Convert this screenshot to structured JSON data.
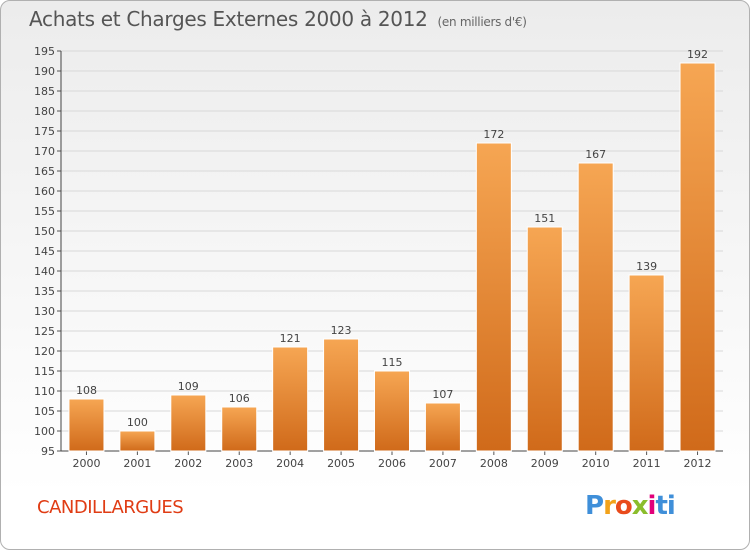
{
  "title": "Achats et Charges Externes 2000 à 2012",
  "unit": "(en milliers d'€)",
  "commune": "CANDILLARGUES",
  "logo": {
    "text": "Proxiti",
    "letters": [
      "P",
      "r",
      "o",
      "x",
      "i",
      "t",
      "i"
    ]
  },
  "colors": {
    "bar_top": "#f6a653",
    "bar_bottom": "#d06a1a",
    "grid": "#d8d8d8",
    "title": "#555555",
    "commune": "#e03c14"
  },
  "chart_data": {
    "type": "bar",
    "categories": [
      "2000",
      "2001",
      "2002",
      "2003",
      "2004",
      "2005",
      "2006",
      "2007",
      "2008",
      "2009",
      "2010",
      "2011",
      "2012"
    ],
    "values": [
      108,
      100,
      109,
      106,
      121,
      123,
      115,
      107,
      172,
      151,
      167,
      139,
      192
    ],
    "ylim": [
      95,
      195
    ],
    "yticks": [
      95,
      100,
      105,
      110,
      115,
      120,
      125,
      130,
      135,
      140,
      145,
      150,
      155,
      160,
      165,
      170,
      175,
      180,
      185,
      190,
      195
    ],
    "grid": true,
    "data_labels": true
  }
}
